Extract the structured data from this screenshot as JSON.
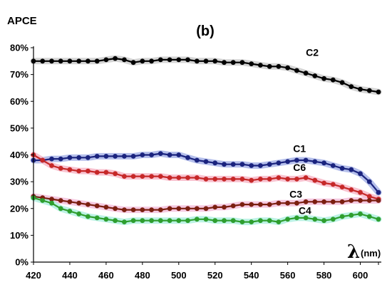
{
  "chart_data": {
    "type": "line",
    "title": "(b)",
    "ylabel": "APCE",
    "xlabel_symbol": "λ",
    "xlabel_unit": "(nm)",
    "xlim": [
      420,
      610
    ],
    "ylim": [
      0,
      80
    ],
    "x_ticks": [
      "420",
      "440",
      "460",
      "480",
      "500",
      "520",
      "540",
      "560",
      "580",
      "600"
    ],
    "y_ticks": [
      "0%",
      "10%",
      "20%",
      "30%",
      "40%",
      "50%",
      "60%",
      "70%",
      "80%"
    ],
    "grid": false,
    "series": [
      {
        "name": "C2",
        "color": "#000000",
        "glow": "#cccccc",
        "points": [
          [
            420,
            75
          ],
          [
            425,
            75
          ],
          [
            430,
            75
          ],
          [
            435,
            75
          ],
          [
            440,
            75
          ],
          [
            445,
            75
          ],
          [
            450,
            75
          ],
          [
            455,
            75
          ],
          [
            460,
            75.5
          ],
          [
            465,
            76
          ],
          [
            470,
            75.5
          ],
          [
            475,
            74.5
          ],
          [
            480,
            75
          ],
          [
            485,
            75
          ],
          [
            490,
            75.5
          ],
          [
            495,
            75.5
          ],
          [
            500,
            75.5
          ],
          [
            505,
            75.5
          ],
          [
            510,
            75
          ],
          [
            515,
            75
          ],
          [
            520,
            75
          ],
          [
            525,
            74.5
          ],
          [
            530,
            74.5
          ],
          [
            535,
            74.5
          ],
          [
            540,
            74
          ],
          [
            545,
            73.5
          ],
          [
            550,
            73
          ],
          [
            555,
            73
          ],
          [
            560,
            72.5
          ],
          [
            565,
            71.5
          ],
          [
            570,
            70.5
          ],
          [
            575,
            69.5
          ],
          [
            580,
            68.5
          ],
          [
            585,
            68
          ],
          [
            590,
            67
          ],
          [
            595,
            65.5
          ],
          [
            600,
            64.5
          ],
          [
            605,
            64
          ],
          [
            610,
            63.5
          ]
        ]
      },
      {
        "name": "C1",
        "color": "#1a237e",
        "glow": "#a8b4e8",
        "points": [
          [
            420,
            38
          ],
          [
            425,
            38
          ],
          [
            430,
            38.5
          ],
          [
            435,
            38.5
          ],
          [
            440,
            39
          ],
          [
            445,
            39
          ],
          [
            450,
            39
          ],
          [
            455,
            39.5
          ],
          [
            460,
            39.5
          ],
          [
            465,
            39.5
          ],
          [
            470,
            39.5
          ],
          [
            475,
            39.5
          ],
          [
            480,
            40
          ],
          [
            485,
            40
          ],
          [
            490,
            40.5
          ],
          [
            495,
            40
          ],
          [
            500,
            40
          ],
          [
            505,
            39
          ],
          [
            510,
            38
          ],
          [
            515,
            37.5
          ],
          [
            520,
            37
          ],
          [
            525,
            36.5
          ],
          [
            530,
            36.5
          ],
          [
            535,
            36.5
          ],
          [
            540,
            36
          ],
          [
            545,
            36
          ],
          [
            550,
            36.5
          ],
          [
            555,
            37
          ],
          [
            560,
            37.5
          ],
          [
            565,
            38
          ],
          [
            570,
            38
          ],
          [
            575,
            37.5
          ],
          [
            580,
            37
          ],
          [
            585,
            36
          ],
          [
            590,
            35
          ],
          [
            595,
            34.5
          ],
          [
            600,
            33
          ],
          [
            605,
            30
          ],
          [
            610,
            26
          ]
        ]
      },
      {
        "name": "C6",
        "color": "#c62828",
        "glow": "#f7b8c8",
        "points": [
          [
            420,
            40
          ],
          [
            425,
            38
          ],
          [
            430,
            36
          ],
          [
            435,
            35
          ],
          [
            440,
            34.5
          ],
          [
            445,
            34
          ],
          [
            450,
            34
          ],
          [
            455,
            33.5
          ],
          [
            460,
            33.5
          ],
          [
            465,
            33
          ],
          [
            470,
            32
          ],
          [
            475,
            32
          ],
          [
            480,
            32
          ],
          [
            485,
            32
          ],
          [
            490,
            32
          ],
          [
            495,
            31.5
          ],
          [
            500,
            31.5
          ],
          [
            505,
            31.5
          ],
          [
            510,
            31.5
          ],
          [
            515,
            31
          ],
          [
            520,
            31
          ],
          [
            525,
            31
          ],
          [
            530,
            31
          ],
          [
            535,
            31
          ],
          [
            540,
            30.5
          ],
          [
            545,
            31
          ],
          [
            550,
            31
          ],
          [
            555,
            31.5
          ],
          [
            560,
            31
          ],
          [
            565,
            31
          ],
          [
            570,
            31.5
          ],
          [
            575,
            30.5
          ],
          [
            580,
            29.5
          ],
          [
            585,
            29
          ],
          [
            590,
            28
          ],
          [
            595,
            27
          ],
          [
            600,
            26
          ],
          [
            605,
            24.5
          ],
          [
            610,
            23.5
          ]
        ]
      },
      {
        "name": "C3",
        "color": "#7b1f10",
        "glow": "#f3c0dc",
        "points": [
          [
            420,
            24.5
          ],
          [
            425,
            24
          ],
          [
            430,
            23.5
          ],
          [
            435,
            23
          ],
          [
            440,
            22.5
          ],
          [
            445,
            22
          ],
          [
            450,
            21.5
          ],
          [
            455,
            21
          ],
          [
            460,
            20.5
          ],
          [
            465,
            20
          ],
          [
            470,
            19.5
          ],
          [
            475,
            19.5
          ],
          [
            480,
            19.5
          ],
          [
            485,
            19.5
          ],
          [
            490,
            19.5
          ],
          [
            495,
            20
          ],
          [
            500,
            20
          ],
          [
            505,
            20
          ],
          [
            510,
            20
          ],
          [
            515,
            20
          ],
          [
            520,
            20.5
          ],
          [
            525,
            20.5
          ],
          [
            530,
            21
          ],
          [
            535,
            21.5
          ],
          [
            540,
            21.5
          ],
          [
            545,
            21.5
          ],
          [
            550,
            21.5
          ],
          [
            555,
            22
          ],
          [
            560,
            22
          ],
          [
            565,
            22
          ],
          [
            570,
            22.5
          ],
          [
            575,
            22.5
          ],
          [
            580,
            22.5
          ],
          [
            585,
            22.5
          ],
          [
            590,
            22.5
          ],
          [
            595,
            23
          ],
          [
            600,
            23
          ],
          [
            605,
            23
          ],
          [
            610,
            23
          ]
        ]
      },
      {
        "name": "C4",
        "color": "#2e9e2e",
        "glow": "#b0f0e0",
        "points": [
          [
            420,
            24
          ],
          [
            425,
            23
          ],
          [
            430,
            22
          ],
          [
            435,
            20
          ],
          [
            440,
            19
          ],
          [
            445,
            18
          ],
          [
            450,
            17
          ],
          [
            455,
            16.5
          ],
          [
            460,
            16
          ],
          [
            465,
            15.5
          ],
          [
            470,
            15
          ],
          [
            475,
            15.5
          ],
          [
            480,
            15.5
          ],
          [
            485,
            15.5
          ],
          [
            490,
            15.5
          ],
          [
            495,
            15.5
          ],
          [
            500,
            15.5
          ],
          [
            505,
            15.5
          ],
          [
            510,
            16
          ],
          [
            515,
            16
          ],
          [
            520,
            15.5
          ],
          [
            525,
            15.5
          ],
          [
            530,
            15.5
          ],
          [
            535,
            15
          ],
          [
            540,
            15
          ],
          [
            545,
            15.5
          ],
          [
            550,
            15.5
          ],
          [
            555,
            15
          ],
          [
            560,
            16
          ],
          [
            565,
            16.5
          ],
          [
            570,
            16.5
          ],
          [
            575,
            16
          ],
          [
            580,
            15.5
          ],
          [
            585,
            16
          ],
          [
            590,
            17
          ],
          [
            595,
            17.5
          ],
          [
            600,
            18
          ],
          [
            605,
            17
          ],
          [
            610,
            16
          ]
        ]
      }
    ],
    "annotations": [
      {
        "text": "C2",
        "x": 570,
        "y": 77
      },
      {
        "text": "C1",
        "x": 563,
        "y": 41
      },
      {
        "text": "C6",
        "x": 563,
        "y": 34
      },
      {
        "text": "C3",
        "x": 561,
        "y": 24
      },
      {
        "text": "C4",
        "x": 566,
        "y": 18
      }
    ]
  }
}
